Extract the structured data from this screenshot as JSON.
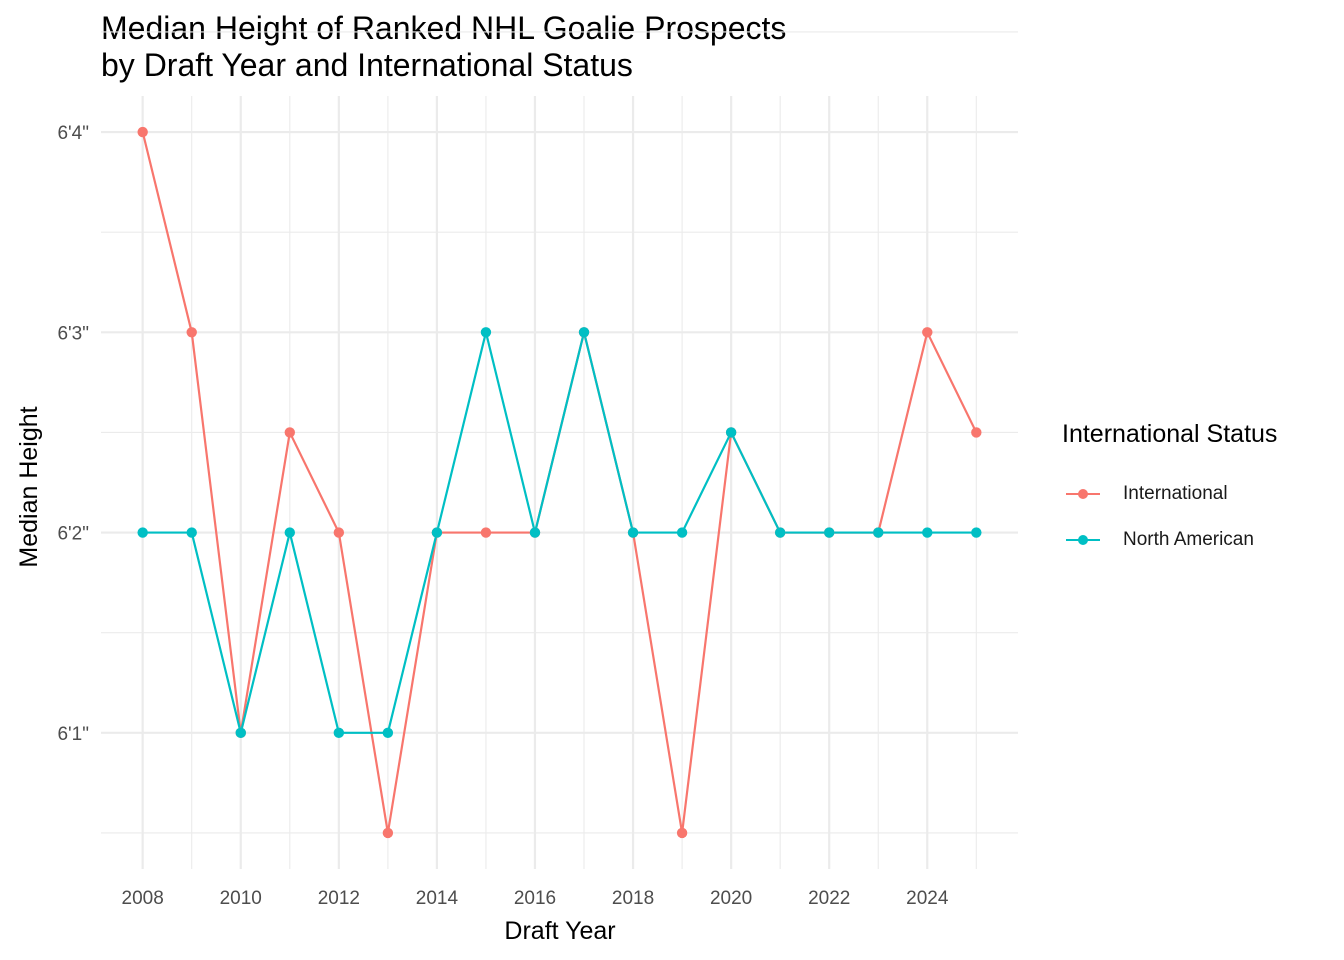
{
  "chart_data": {
    "type": "line",
    "title": [
      "Median Height of Ranked NHL Goalie Prospects",
      "by Draft Year and International Status"
    ],
    "xlabel": "Draft Year",
    "ylabel": "Median Height",
    "x": [
      2008,
      2009,
      2010,
      2011,
      2012,
      2013,
      2014,
      2015,
      2016,
      2017,
      2018,
      2019,
      2020,
      2021,
      2022,
      2023,
      2024,
      2025
    ],
    "x_ticks": [
      2008,
      2010,
      2012,
      2014,
      2016,
      2018,
      2020,
      2022,
      2024
    ],
    "x_tick_labels": [
      "2008",
      "2010",
      "2012",
      "2014",
      "2016",
      "2018",
      "2020",
      "2022",
      "2024"
    ],
    "xlim": [
      2007.15,
      2025.85
    ],
    "y_unit": "inches",
    "y_ticks": [
      73,
      74,
      75,
      76
    ],
    "y_tick_labels": [
      "6'1\"",
      "6'2\"",
      "6'3\"",
      "6'4\""
    ],
    "ylim": [
      72.32,
      76.18
    ],
    "grid": true,
    "legend": {
      "title": "International Status",
      "position": "right"
    },
    "series": [
      {
        "name": "International",
        "color": "#F8766D",
        "values": [
          76,
          75,
          73,
          74.5,
          74,
          72.5,
          74,
          74,
          74,
          75,
          74,
          72.5,
          74.5,
          74,
          74,
          74,
          75,
          74.5
        ]
      },
      {
        "name": "North American",
        "color": "#00BFC4",
        "values": [
          74,
          74,
          73,
          74,
          73,
          73,
          74,
          75,
          74,
          75,
          74,
          74,
          74.5,
          74,
          74,
          74,
          74,
          74
        ]
      }
    ]
  }
}
